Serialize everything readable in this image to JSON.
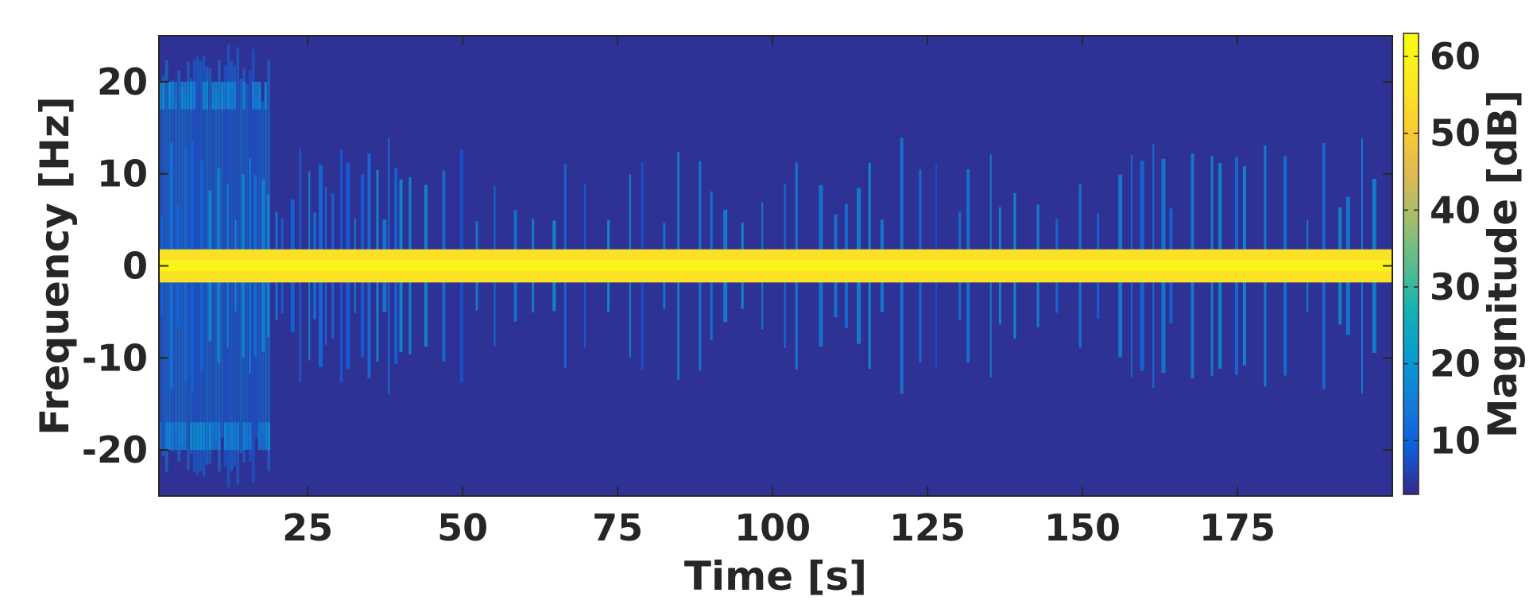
{
  "chart_data": {
    "type": "heatmap",
    "subtype": "spectrogram",
    "xlabel": "Time [s]",
    "ylabel": "Frequency [Hz]",
    "colorbar_label": "Magnitude [dB]",
    "xlim": [
      1,
      200
    ],
    "ylim": [
      -25,
      25
    ],
    "clim": [
      3,
      63
    ],
    "colormap": "parula",
    "x_ticks": [
      25,
      50,
      75,
      100,
      125,
      150,
      175
    ],
    "x_tick_labels": [
      "25",
      "50",
      "75",
      "100",
      "125",
      "150",
      "175"
    ],
    "y_ticks": [
      20,
      10,
      0,
      -10,
      -20
    ],
    "y_tick_labels": [
      "20",
      "10",
      "0",
      "-10",
      "-20"
    ],
    "colorbar_ticks": [
      60,
      50,
      40,
      30,
      20,
      10
    ],
    "colorbar_tick_labels": [
      "60",
      "50",
      "40",
      "30",
      "20",
      "10"
    ],
    "background_level_db": 4,
    "dc_band": {
      "freq_range_hz": [
        -1.8,
        1.8
      ],
      "core_range_hz": [
        -0.6,
        0.6
      ],
      "edge_level_db": 55,
      "core_level_db": 60
    },
    "early_broadband_burst": {
      "time_range_s": [
        1,
        19
      ],
      "freq_extent_hz": 23,
      "level_db": 13,
      "hot_bands": [
        {
          "freq_range_hz": [
            17,
            20
          ],
          "level_db": 18
        },
        {
          "freq_range_hz": [
            -20,
            -17
          ],
          "level_db": 18
        }
      ]
    },
    "transient_streaks": {
      "time_range_s": [
        1,
        200
      ],
      "typical_freq_extent_hz": 10,
      "level_db": [
        8,
        20
      ]
    }
  }
}
